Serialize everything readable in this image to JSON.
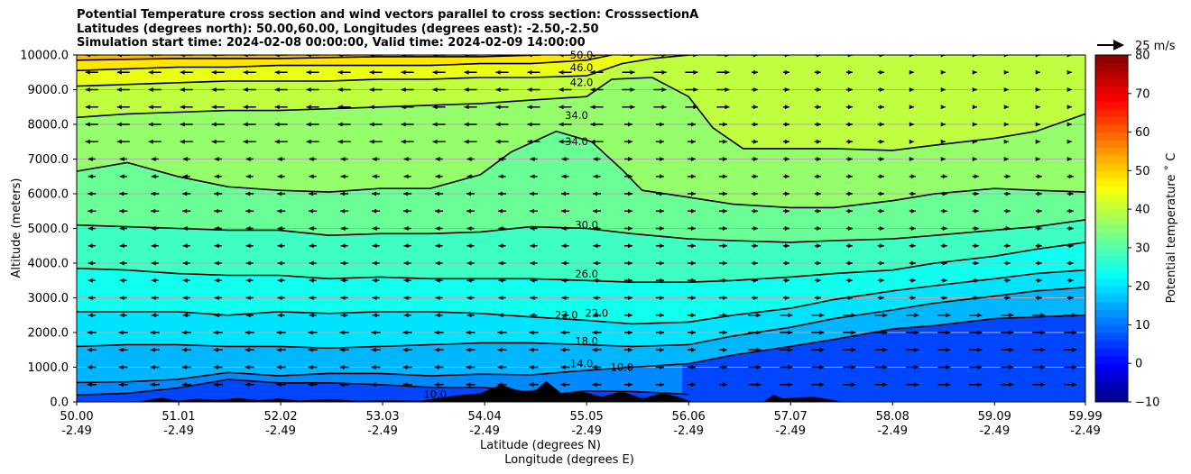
{
  "chart_data": {
    "type": "heatmap",
    "title_lines": [
      "Potential Temperature cross section and wind vectors parallel to cross section: CrosssectionA",
      "Latitudes (degrees north): 50.00,60.00, Longitudes (degrees east): -2.50,-2.50",
      "Simulation start time: 2024-02-08 00:00:00, Valid time: 2024-02-09 14:00:00"
    ],
    "ylabel": "Altitude (meters)",
    "xlabel": "Latitude (degrees N)",
    "xlabel2": "Longitude (degrees E)",
    "ylim": [
      0,
      10000
    ],
    "y_ticks": [
      "0.0",
      "1000.0",
      "2000.0",
      "3000.0",
      "4000.0",
      "5000.0",
      "6000.0",
      "7000.0",
      "8000.0",
      "9000.0",
      "10000.0"
    ],
    "x_ticks": [
      {
        "lat": "50.00",
        "lon": "-2.49"
      },
      {
        "lat": "51.01",
        "lon": "-2.49"
      },
      {
        "lat": "52.02",
        "lon": "-2.49"
      },
      {
        "lat": "53.03",
        "lon": "-2.49"
      },
      {
        "lat": "54.04",
        "lon": "-2.49"
      },
      {
        "lat": "55.05",
        "lon": "-2.49"
      },
      {
        "lat": "56.06",
        "lon": "-2.49"
      },
      {
        "lat": "57.07",
        "lon": "-2.49"
      },
      {
        "lat": "58.08",
        "lon": "-2.49"
      },
      {
        "lat": "59.09",
        "lon": "-2.49"
      },
      {
        "lat": "59.99",
        "lon": "-2.49"
      }
    ],
    "colorbar": {
      "label": "Potential temperature ˚ C",
      "range": [
        -10,
        80
      ],
      "ticks": [
        "−10",
        "0",
        "10",
        "20",
        "30",
        "40",
        "50",
        "60",
        "70",
        "80"
      ]
    },
    "quiver_key": "25 m/s",
    "contour_labels": [
      "50.0",
      "46.0",
      "42.0",
      "34.0",
      "34.0",
      "30.0",
      "26.0",
      "22.0",
      "22.0",
      "18.0",
      "14.0",
      "10.0",
      "10.0"
    ],
    "series": [
      {
        "level": 10,
        "points": [
          [
            50.0,
            200
          ],
          [
            50.5,
            250
          ],
          [
            51.0,
            400
          ],
          [
            51.5,
            650
          ],
          [
            52.0,
            550
          ],
          [
            52.5,
            550
          ],
          [
            53.0,
            500
          ],
          [
            53.5,
            420
          ],
          [
            54.0,
            420
          ],
          [
            54.3,
            350
          ],
          [
            54.7,
            200
          ],
          [
            55.05,
            320
          ],
          [
            55.5,
            300
          ],
          [
            56.06,
            220
          ]
        ]
      },
      {
        "level": 14,
        "points": [
          [
            50.0,
            560
          ],
          [
            50.5,
            580
          ],
          [
            51.0,
            650
          ],
          [
            51.5,
            850
          ],
          [
            52.0,
            750
          ],
          [
            52.5,
            820
          ],
          [
            53.0,
            820
          ],
          [
            53.5,
            750
          ],
          [
            54.0,
            800
          ],
          [
            54.5,
            780
          ],
          [
            55.0,
            900
          ],
          [
            55.5,
            1000
          ],
          [
            56.06,
            1100
          ],
          [
            56.5,
            1350
          ],
          [
            57.07,
            1600
          ],
          [
            57.5,
            1800
          ],
          [
            58.08,
            2100
          ],
          [
            58.5,
            2200
          ],
          [
            59.09,
            2400
          ],
          [
            59.5,
            2450
          ],
          [
            59.99,
            2500
          ]
        ]
      },
      {
        "level": 18,
        "points": [
          [
            50.0,
            1600
          ],
          [
            50.5,
            1650
          ],
          [
            51.0,
            1650
          ],
          [
            51.5,
            1600
          ],
          [
            52.0,
            1600
          ],
          [
            52.5,
            1550
          ],
          [
            53.0,
            1600
          ],
          [
            53.5,
            1650
          ],
          [
            54.0,
            1700
          ],
          [
            54.5,
            1700
          ],
          [
            55.05,
            1650
          ],
          [
            55.5,
            1600
          ],
          [
            56.06,
            1650
          ],
          [
            56.5,
            1900
          ],
          [
            57.07,
            2150
          ],
          [
            57.5,
            2400
          ],
          [
            58.08,
            2650
          ],
          [
            58.5,
            2850
          ],
          [
            59.09,
            3050
          ],
          [
            59.5,
            3200
          ],
          [
            59.99,
            3300
          ]
        ]
      },
      {
        "level": 22,
        "points": [
          [
            50.0,
            2600
          ],
          [
            50.5,
            2600
          ],
          [
            51.0,
            2600
          ],
          [
            51.5,
            2500
          ],
          [
            52.0,
            2600
          ],
          [
            52.5,
            2550
          ],
          [
            53.0,
            2600
          ],
          [
            53.5,
            2600
          ],
          [
            54.0,
            2550
          ],
          [
            54.5,
            2450
          ],
          [
            55.05,
            2350
          ],
          [
            55.5,
            2250
          ],
          [
            56.06,
            2300
          ],
          [
            56.5,
            2500
          ],
          [
            57.07,
            2700
          ],
          [
            57.5,
            2950
          ],
          [
            58.08,
            3200
          ],
          [
            58.5,
            3350
          ],
          [
            59.09,
            3550
          ],
          [
            59.5,
            3700
          ],
          [
            59.99,
            3800
          ]
        ]
      },
      {
        "level": 26,
        "points": [
          [
            50.0,
            3850
          ],
          [
            50.5,
            3800
          ],
          [
            51.0,
            3700
          ],
          [
            51.5,
            3650
          ],
          [
            52.0,
            3650
          ],
          [
            52.5,
            3550
          ],
          [
            53.0,
            3600
          ],
          [
            53.5,
            3550
          ],
          [
            54.0,
            3550
          ],
          [
            54.5,
            3550
          ],
          [
            55.05,
            3500
          ],
          [
            55.5,
            3450
          ],
          [
            56.06,
            3450
          ],
          [
            56.5,
            3500
          ],
          [
            57.07,
            3600
          ],
          [
            57.5,
            3700
          ],
          [
            58.08,
            3800
          ],
          [
            58.5,
            4000
          ],
          [
            59.09,
            4200
          ],
          [
            59.5,
            4400
          ],
          [
            59.99,
            4600
          ]
        ]
      },
      {
        "level": 30,
        "points": [
          [
            50.0,
            5100
          ],
          [
            50.5,
            5050
          ],
          [
            51.0,
            5000
          ],
          [
            51.5,
            4950
          ],
          [
            52.0,
            4950
          ],
          [
            52.5,
            4800
          ],
          [
            53.0,
            4850
          ],
          [
            53.5,
            4850
          ],
          [
            54.0,
            4900
          ],
          [
            54.5,
            5050
          ],
          [
            55.05,
            5000
          ],
          [
            55.5,
            4850
          ],
          [
            56.06,
            4700
          ],
          [
            56.5,
            4650
          ],
          [
            57.07,
            4600
          ],
          [
            57.5,
            4650
          ],
          [
            58.08,
            4700
          ],
          [
            58.5,
            4800
          ],
          [
            59.09,
            4950
          ],
          [
            59.5,
            5050
          ],
          [
            59.99,
            5250
          ]
        ]
      },
      {
        "level": 34,
        "points": [
          [
            50.0,
            6650
          ],
          [
            50.5,
            6900
          ],
          [
            51.0,
            6500
          ],
          [
            51.5,
            6200
          ],
          [
            52.0,
            6100
          ],
          [
            52.5,
            6050
          ],
          [
            53.0,
            6150
          ],
          [
            53.5,
            6150
          ],
          [
            54.0,
            6550
          ],
          [
            54.3,
            7200
          ],
          [
            54.6,
            7600
          ],
          [
            54.75,
            7800
          ],
          [
            55.1,
            7500
          ],
          [
            55.4,
            6700
          ],
          [
            55.6,
            6100
          ],
          [
            56.06,
            5900
          ],
          [
            56.5,
            5700
          ],
          [
            57.07,
            5600
          ],
          [
            57.5,
            5600
          ],
          [
            58.08,
            5800
          ],
          [
            58.5,
            6000
          ],
          [
            59.09,
            6150
          ],
          [
            59.5,
            6100
          ],
          [
            59.99,
            6050
          ]
        ]
      },
      {
        "level": 38,
        "points": [
          [
            50.0,
            8200
          ],
          [
            50.5,
            8300
          ],
          [
            51.0,
            8350
          ],
          [
            51.5,
            8400
          ],
          [
            52.0,
            8400
          ],
          [
            52.5,
            8450
          ],
          [
            53.0,
            8500
          ],
          [
            53.5,
            8550
          ],
          [
            54.0,
            8600
          ],
          [
            54.5,
            8700
          ],
          [
            55.05,
            8800
          ],
          [
            55.3,
            9300
          ],
          [
            55.7,
            9350
          ],
          [
            56.06,
            8800
          ],
          [
            56.3,
            7900
          ],
          [
            56.6,
            7300
          ],
          [
            57.0,
            7300
          ],
          [
            57.5,
            7300
          ],
          [
            58.08,
            7250
          ],
          [
            58.5,
            7400
          ],
          [
            59.09,
            7600
          ],
          [
            59.5,
            7800
          ],
          [
            59.99,
            8300
          ]
        ]
      },
      {
        "level": 42,
        "points": [
          [
            50.0,
            9100
          ],
          [
            50.5,
            9150
          ],
          [
            51.0,
            9200
          ],
          [
            51.5,
            9250
          ],
          [
            52.0,
            9250
          ],
          [
            52.5,
            9250
          ],
          [
            53.0,
            9300
          ],
          [
            53.5,
            9300
          ],
          [
            54.0,
            9350
          ],
          [
            54.5,
            9350
          ],
          [
            55.05,
            9400
          ],
          [
            55.4,
            9750
          ],
          [
            55.7,
            9900
          ],
          [
            56.06,
            10000
          ]
        ]
      },
      {
        "level": 46,
        "points": [
          [
            50.0,
            9550
          ],
          [
            50.5,
            9600
          ],
          [
            51.0,
            9650
          ],
          [
            51.5,
            9650
          ],
          [
            52.0,
            9700
          ],
          [
            52.5,
            9700
          ],
          [
            53.0,
            9700
          ],
          [
            53.5,
            9700
          ],
          [
            54.0,
            9750
          ],
          [
            54.5,
            9750
          ],
          [
            55.05,
            9850
          ],
          [
            55.3,
            10000
          ]
        ]
      },
      {
        "level": 50,
        "points": [
          [
            50.0,
            9850
          ],
          [
            51.0,
            9900
          ],
          [
            52.0,
            9900
          ],
          [
            53.0,
            9950
          ],
          [
            54.0,
            9950
          ],
          [
            54.6,
            10000
          ]
        ]
      }
    ]
  }
}
